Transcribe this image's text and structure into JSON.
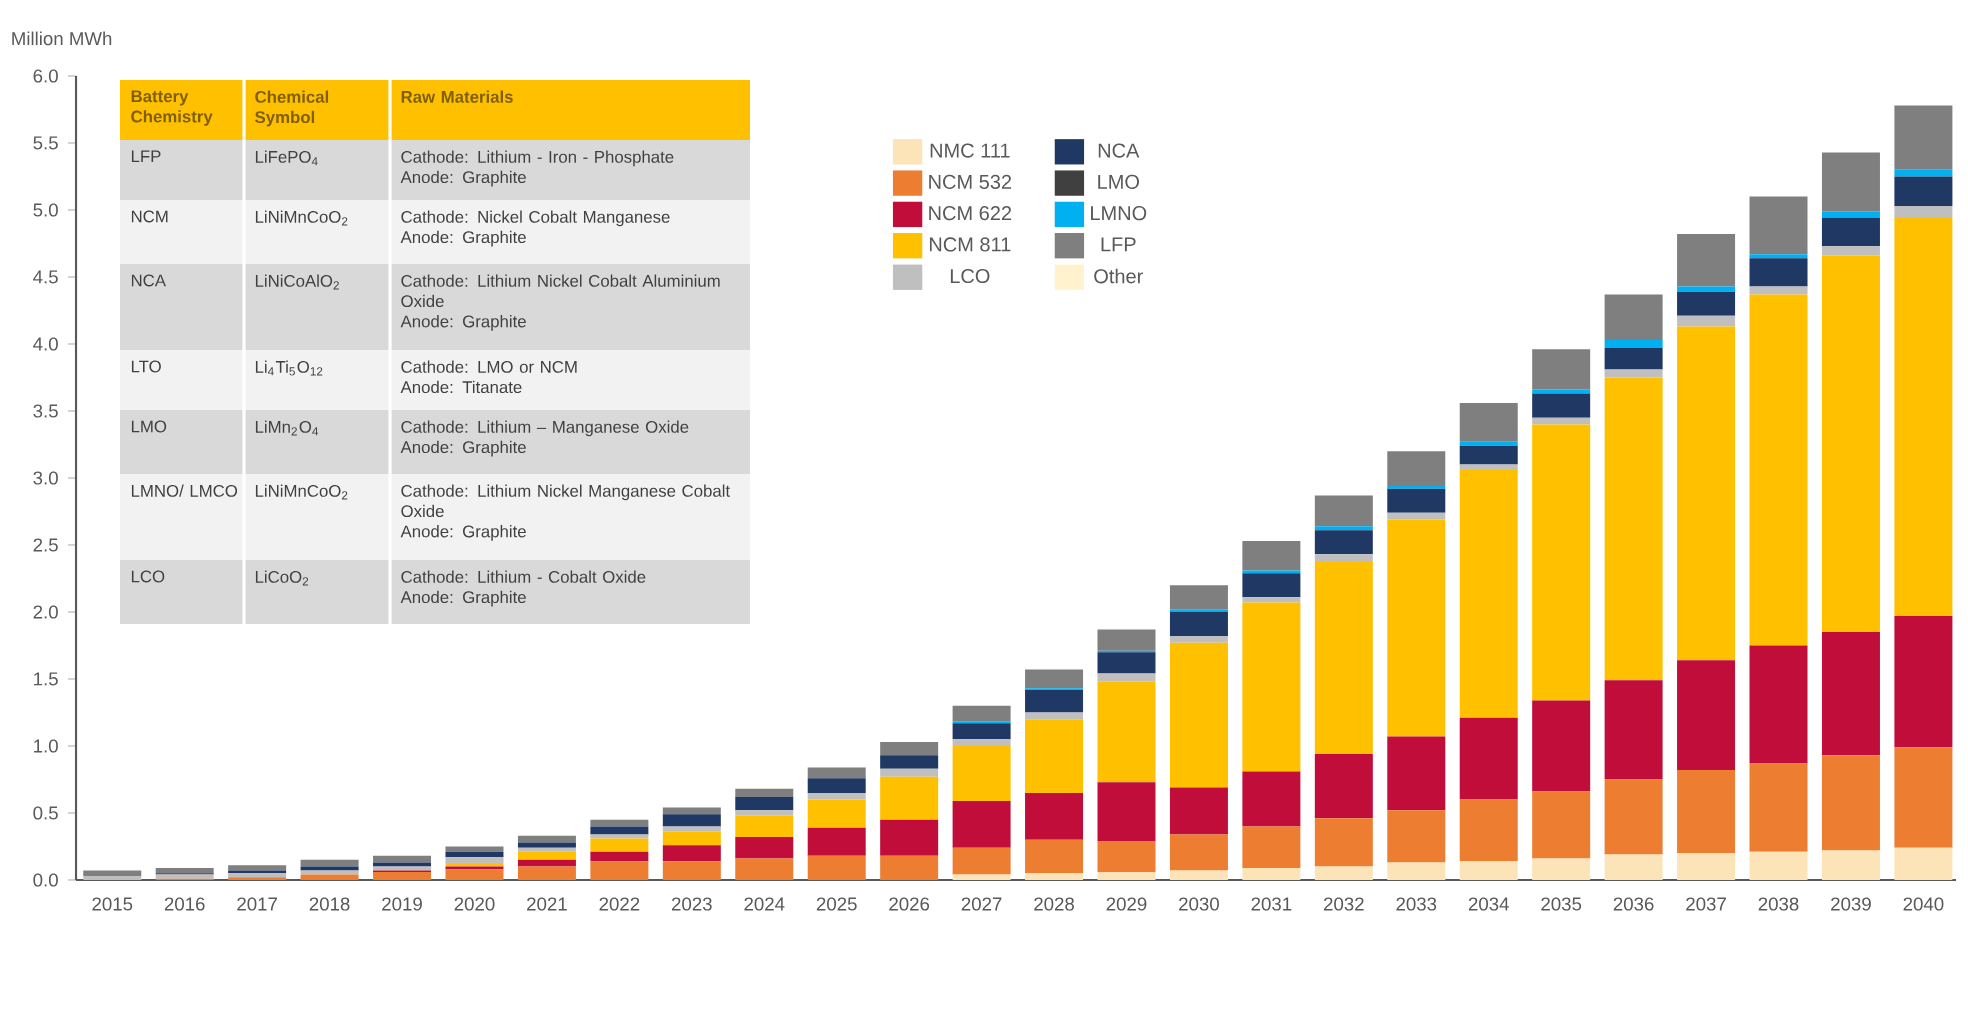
{
  "chart_data": [
    {
      "type": "bar",
      "stacked": true,
      "ylabel": "Million MWh",
      "categories": [
        "2015",
        "2016",
        "2017",
        "2018",
        "2019",
        "2020",
        "2021",
        "2022",
        "2023",
        "2024",
        "2025",
        "2026",
        "2027",
        "2028",
        "2029",
        "2030",
        "2031",
        "2032",
        "2033",
        "2034",
        "2035",
        "2036",
        "2037",
        "2038",
        "2039",
        "2040"
      ],
      "ylim": [
        0,
        6
      ],
      "yticks": [
        {
          "value": 0,
          "label": "0.0"
        },
        {
          "value": 0.5,
          "label": "0.5"
        },
        {
          "value": 1,
          "label": "1.0"
        },
        {
          "value": 1.5,
          "label": "1.5"
        },
        {
          "value": 2,
          "label": "2.0"
        },
        {
          "value": 2.5,
          "label": "2.5"
        },
        {
          "value": 3,
          "label": "3.0"
        },
        {
          "value": 3.5,
          "label": "3.5"
        },
        {
          "value": 4,
          "label": "4.0"
        },
        {
          "value": 4.5,
          "label": "4.5"
        },
        {
          "value": 5,
          "label": "5.0"
        },
        {
          "value": 5.5,
          "label": "5.5"
        },
        {
          "value": 6,
          "label": "6.0"
        }
      ],
      "legend": "top",
      "series": [
        {
          "name": "NMC 111",
          "color": "#fde4b8",
          "values": [
            0,
            0,
            0,
            0,
            0,
            0,
            0,
            0,
            0,
            0,
            0,
            null,
            0.04,
            0.05,
            0.06,
            0.07,
            0.09,
            0.1,
            0.13,
            0.14,
            0.16,
            0.19,
            0.2,
            0.21,
            0.22,
            0.24
          ]
        },
        {
          "name": "NCM 532",
          "color": "#ed7d31",
          "values": [
            0,
            0.01,
            0.02,
            0.04,
            0.06,
            0.08,
            0.1,
            0.14,
            0.14,
            0.16,
            0.18,
            0.18,
            0.2,
            0.25,
            0.23,
            0.27,
            0.31,
            0.36,
            0.39,
            0.46,
            0.5,
            0.56,
            0.62,
            0.66,
            0.71,
            0.75
          ]
        },
        {
          "name": "NCM 622",
          "color": "#c00d3a",
          "values": [
            0,
            0,
            0,
            0,
            0.01,
            0.02,
            0.05,
            0.07,
            0.12,
            0.16,
            0.21,
            0.27,
            0.35,
            0.35,
            0.44,
            0.35,
            0.41,
            0.48,
            0.55,
            0.61,
            0.68,
            0.74,
            0.82,
            0.88,
            0.92,
            0.98
          ]
        },
        {
          "name": "NCM 811",
          "color": "#ffc000",
          "values": [
            0,
            0,
            0,
            0,
            0,
            0.02,
            0.06,
            0.1,
            0.1,
            0.16,
            0.21,
            0.32,
            0.41,
            0.55,
            0.75,
            1.08,
            1.26,
            1.44,
            1.62,
            1.85,
            2.06,
            2.26,
            2.49,
            2.62,
            2.81,
            2.97
          ]
        },
        {
          "name": "LCO",
          "color": "#bfbfbf",
          "values": [
            0.03,
            0.03,
            0.03,
            0.03,
            0.03,
            0.05,
            0.03,
            0.03,
            0.04,
            0.04,
            0.05,
            0.06,
            0.05,
            0.05,
            0.06,
            0.05,
            0.04,
            0.05,
            0.05,
            0.04,
            0.05,
            0.06,
            0.08,
            0.06,
            0.07,
            0.09
          ]
        },
        {
          "name": "NCA",
          "color": "#1f3864",
          "values": [
            0,
            0.01,
            0.02,
            0.03,
            0.03,
            0.04,
            0.04,
            0.06,
            0.09,
            0.1,
            0.11,
            0.1,
            0.12,
            0.17,
            0.16,
            0.18,
            0.18,
            0.18,
            0.18,
            0.14,
            0.18,
            0.16,
            0.18,
            0.21,
            0.21,
            0.22
          ]
        },
        {
          "name": "LMO",
          "color": "#404040",
          "values": [
            0,
            0,
            0,
            0,
            0,
            0,
            0,
            0,
            0,
            0,
            0,
            0,
            0,
            0,
            0,
            0,
            0,
            0,
            0,
            0,
            0,
            0,
            0,
            0,
            0,
            0
          ]
        },
        {
          "name": "LMNO",
          "color": "#00b0f0",
          "values": [
            0,
            0,
            0,
            0,
            0,
            0,
            0,
            0,
            0,
            0,
            0,
            0,
            0.01,
            0.01,
            0.01,
            0.02,
            0.02,
            0.03,
            0.02,
            0.03,
            0.03,
            0.06,
            0.04,
            0.03,
            0.05,
            0.05
          ]
        },
        {
          "name": "LFP",
          "color": "#7f7f7f",
          "values": [
            0.04,
            0.04,
            0.04,
            0.05,
            0.05,
            0.04,
            0.05,
            0.05,
            0.05,
            0.06,
            0.08,
            0.1,
            0.12,
            0.14,
            0.16,
            0.18,
            0.22,
            0.23,
            0.26,
            0.29,
            0.3,
            0.34,
            0.39,
            0.43,
            0.44,
            0.48
          ]
        },
        {
          "name": "Other",
          "color": "#fff2cc",
          "values": [
            0,
            0,
            0,
            0,
            0,
            0,
            0,
            0,
            0,
            0,
            0,
            0,
            0,
            0,
            0,
            0,
            0,
            0,
            0,
            0,
            0,
            0,
            0,
            0,
            0,
            0
          ]
        }
      ]
    },
    {
      "type": "other",
      "categories": [
        "Battery Chemistry",
        "Chemical Symbol",
        "Raw Materials"
      ],
      "annotations": [
        "LFP",
        "LiFePO$_{4}$",
        "Cathode: Lithium - Iron - Phosphate",
        "Anode: Graphite",
        "NCM",
        "LiNiMnCoO$_{2}$",
        "Cathode: Nickel Cobalt Manganese",
        "Anode: Graphite",
        "NCA",
        "LiNiCoAlO$_{2}$",
        "Cathode: Lithium Nickel Cobalt Aluminium Oxide",
        "Anode: Graphite",
        "LTO",
        "Li$_{4}$Ti$_{5}$O$_{12}$",
        "Cathode: LMO or NCM",
        "Anode: Titanate",
        "LMO",
        "LiMn$_{2}$O$_{4}$",
        "Cathode: Lithium – Manganese Oxide",
        "Anode: Graphite",
        "LMNO/ LMCO",
        "LiNiMnCoO$_{2}$",
        "Cathode: Lithium Nickel Manganese Cobalt Oxide",
        "Anode: Graphite",
        "LCO",
        "LiCoO$_{2}$",
        "Cathode: Lithium - Cobalt Oxide",
        "Anode: Graphite"
      ]
    }
  ]
}
